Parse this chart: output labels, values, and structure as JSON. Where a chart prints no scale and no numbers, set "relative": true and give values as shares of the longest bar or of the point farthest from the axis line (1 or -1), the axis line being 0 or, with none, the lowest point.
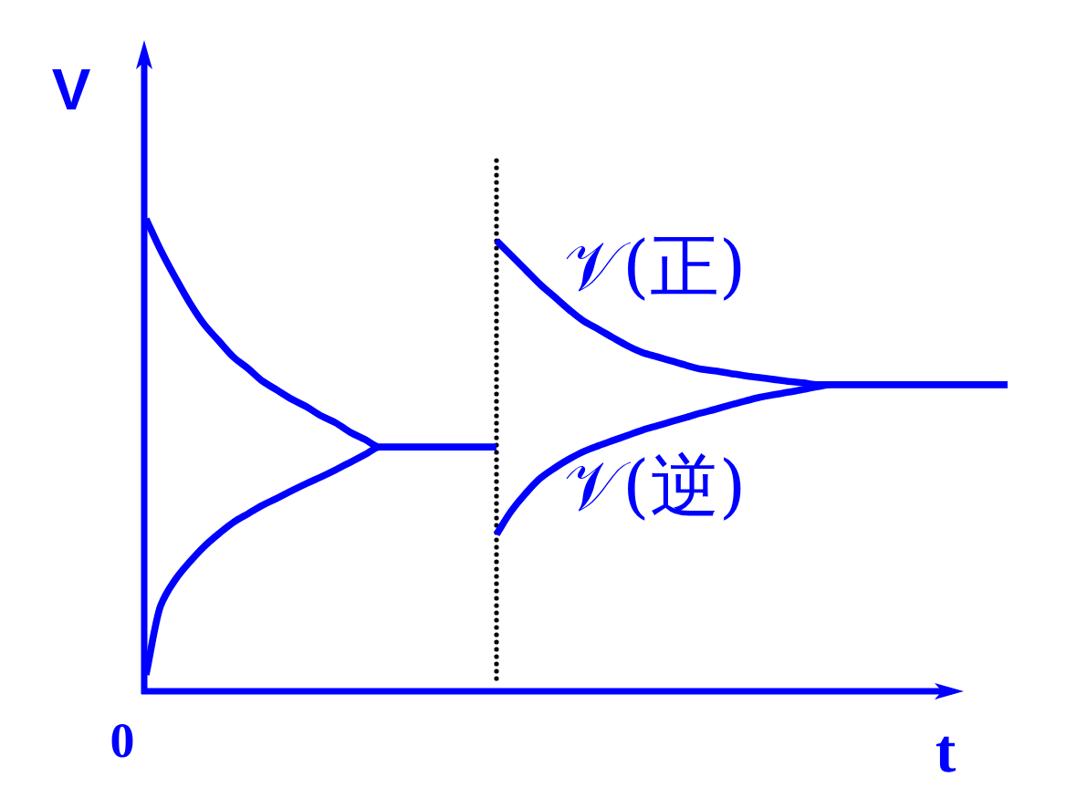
{
  "chart_data": {
    "type": "line",
    "xlabel": "t",
    "ylabel": "V",
    "relative": true,
    "categories": [
      null,
      null,
      null,
      null,
      null,
      null,
      null,
      null,
      null,
      null,
      null,
      null,
      null,
      null,
      null,
      null,
      null,
      null,
      null,
      null,
      null,
      null,
      null,
      null,
      null,
      null,
      null,
      null,
      null,
      null,
      null,
      null,
      null,
      null,
      null,
      null,
      null,
      null,
      null,
      null,
      null,
      null,
      null,
      null,
      null,
      null,
      null,
      null,
      null,
      null,
      null,
      null,
      null,
      null,
      null,
      null,
      null,
      null,
      null,
      null
    ],
    "series": [
      {
        "color": "#0000ff",
        "values": [
          1.0,
          0.934,
          0.876,
          0.822,
          0.776,
          0.741,
          0.707,
          0.683,
          0.656,
          0.637,
          0.618,
          0.602,
          0.583,
          0.568,
          0.548,
          0.533,
          0.517,
          0.517,
          0.517,
          0.517,
          0.517,
          0.517,
          0.517,
          0.517,
          0.517,
          null,
          null,
          null,
          null,
          null,
          null,
          null,
          null,
          null,
          null,
          null,
          null,
          null,
          null,
          null,
          null,
          null,
          null,
          null,
          null,
          null,
          null,
          null,
          null,
          null,
          null,
          null,
          null,
          null,
          null,
          null,
          null,
          null,
          null,
          null
        ]
      },
      {
        "name": "𝒱(正)",
        "color": "#0000ff",
        "values": [
          null,
          null,
          null,
          null,
          null,
          null,
          null,
          null,
          null,
          null,
          null,
          null,
          null,
          null,
          null,
          null,
          null,
          null,
          null,
          null,
          null,
          null,
          null,
          null,
          0.954,
          0.923,
          0.892,
          0.861,
          0.834,
          0.807,
          0.783,
          0.766,
          0.748,
          0.731,
          0.717,
          0.708,
          0.699,
          0.69,
          0.682,
          0.678,
          0.673,
          0.668,
          0.664,
          0.66,
          0.656,
          0.653,
          0.649,
          0.649,
          0.649,
          0.649,
          0.649,
          0.649,
          0.649,
          0.649,
          0.649,
          0.649,
          0.649,
          0.649,
          0.649,
          0.649
        ]
      },
      {
        "color": "#0000ff",
        "values": [
          0.035,
          0.181,
          0.236,
          0.274,
          0.307,
          0.334,
          0.358,
          0.376,
          0.394,
          0.409,
          0.425,
          0.44,
          0.454,
          0.469,
          0.485,
          0.501,
          0.517,
          0.517,
          0.517,
          0.517,
          0.517,
          0.517,
          0.517,
          0.517,
          0.517,
          null,
          null,
          null,
          null,
          null,
          null,
          null,
          null,
          null,
          null,
          null,
          null,
          null,
          null,
          null,
          null,
          null,
          null,
          null,
          null,
          null,
          null,
          null,
          null,
          null,
          null,
          null,
          null,
          null,
          null,
          null,
          null,
          null,
          null,
          null
        ]
      },
      {
        "name": "𝒱(逆)",
        "color": "#0000ff",
        "values": [
          null,
          null,
          null,
          null,
          null,
          null,
          null,
          null,
          null,
          null,
          null,
          null,
          null,
          null,
          null,
          null,
          null,
          null,
          null,
          null,
          null,
          null,
          null,
          null,
          0.332,
          0.381,
          0.419,
          0.451,
          0.473,
          0.492,
          0.508,
          0.52,
          0.531,
          0.542,
          0.553,
          0.562,
          0.571,
          0.58,
          0.589,
          0.597,
          0.606,
          0.614,
          0.622,
          0.628,
          0.633,
          0.639,
          0.645,
          0.649,
          0.649,
          0.649,
          0.649,
          0.649,
          0.649,
          0.649,
          0.649,
          0.649,
          0.649,
          0.649,
          0.649,
          0.649
        ]
      }
    ],
    "annotations": [
      "0"
    ]
  }
}
